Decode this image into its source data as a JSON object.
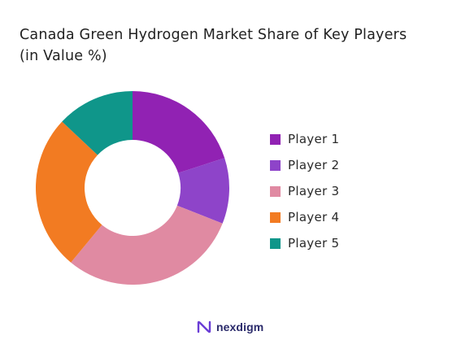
{
  "title_line1": "Canada Green Hydrogen Market Share of Key Players",
  "title_line2": "(in Value %)",
  "brand": {
    "name": "nexdigm",
    "accent": "#6a3dd6"
  },
  "chart_data": {
    "type": "pie",
    "donut": true,
    "categories": [
      "Player 1",
      "Player 2",
      "Player 3",
      "Player 4",
      "Player 5"
    ],
    "values": [
      20,
      11,
      30,
      26,
      13
    ],
    "colors": [
      "#9122b3",
      "#8e44c9",
      "#e08aa2",
      "#f27b22",
      "#0f968a"
    ],
    "legend_position": "right"
  }
}
